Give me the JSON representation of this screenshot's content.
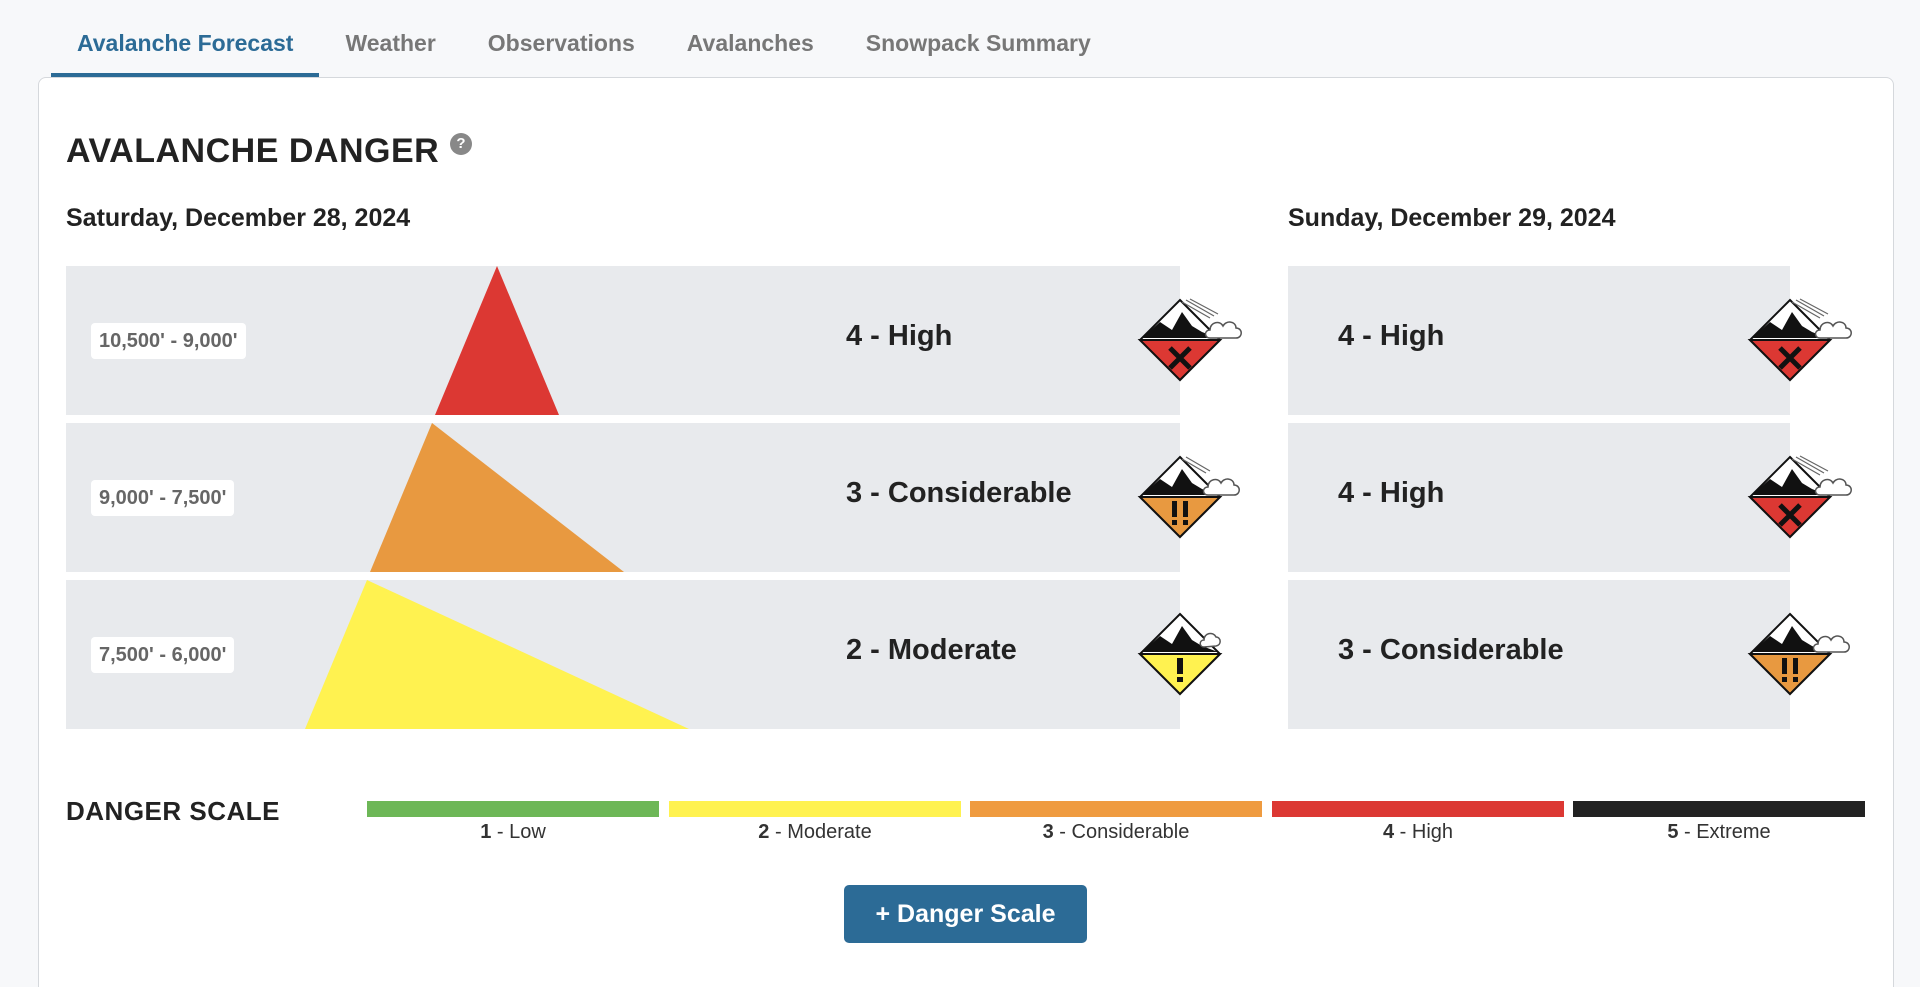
{
  "tabs": [
    {
      "label": "Avalanche Forecast",
      "active": true
    },
    {
      "label": "Weather"
    },
    {
      "label": "Observations"
    },
    {
      "label": "Avalanches"
    },
    {
      "label": "Snowpack Summary"
    }
  ],
  "section_title": "AVALANCHE DANGER",
  "help_icon": "question-circle-icon",
  "day1": {
    "date": "Saturday, December 28, 2024",
    "bands": [
      {
        "elevation": "10,500' - 9,000'",
        "rating": "4 - High",
        "icon": "danger-high-icon",
        "color": "#dc3833"
      },
      {
        "elevation": "9,000' - 7,500'",
        "rating": "3 - Considerable",
        "icon": "danger-considerable-icon",
        "color": "#e89940"
      },
      {
        "elevation": "7,500' - 6,000'",
        "rating": "2 - Moderate",
        "icon": "danger-moderate-icon",
        "color": "#fff250"
      }
    ]
  },
  "day2": {
    "date": "Sunday, December 29, 2024",
    "bands": [
      {
        "rating": "4 - High",
        "icon": "danger-high-icon",
        "color": "#dc3833"
      },
      {
        "rating": "4 - High",
        "icon": "danger-high-icon",
        "color": "#dc3833"
      },
      {
        "rating": "3 - Considerable",
        "icon": "danger-considerable-icon",
        "color": "#e89940"
      }
    ]
  },
  "danger_scale": {
    "label": "DANGER SCALE",
    "levels": [
      {
        "num": "1",
        "name": " - Low",
        "color": "#6db757"
      },
      {
        "num": "2",
        "name": " - Moderate",
        "color": "#fff250"
      },
      {
        "num": "3",
        "name": " - Considerable",
        "color": "#ef9b40"
      },
      {
        "num": "4",
        "name": " - High",
        "color": "#dc3833"
      },
      {
        "num": "5",
        "name": " - Extreme",
        "color": "#222222"
      }
    ]
  },
  "button_label": "+ Danger Scale"
}
